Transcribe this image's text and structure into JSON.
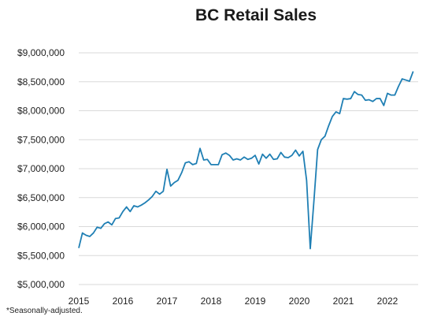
{
  "chart_data": {
    "type": "line",
    "title": "BC Retail Sales",
    "footnote": "*Seasonally-adjusted.",
    "ylim": [
      5000000,
      9000000
    ],
    "y_ticks": [
      5000000,
      5500000,
      6000000,
      6500000,
      7000000,
      7500000,
      8000000,
      8500000,
      9000000
    ],
    "y_tick_labels": [
      "$5,000,000",
      "$5,500,000",
      "$6,000,000",
      "$6,500,000",
      "$7,000,000",
      "$7,500,000",
      "$8,000,000",
      "$8,500,000",
      "$9,000,000"
    ],
    "x_tick_labels": [
      "2015",
      "2016",
      "2017",
      "2018",
      "2019",
      "2020",
      "2021",
      "2022"
    ],
    "grid": "horizontal",
    "line_color": "#1f7fb4",
    "series": [
      {
        "x_start": "2015-01",
        "frequency": "monthly",
        "values": [
          5630000,
          5890000,
          5850000,
          5830000,
          5890000,
          5990000,
          5970000,
          6050000,
          6080000,
          6030000,
          6140000,
          6150000,
          6260000,
          6340000,
          6260000,
          6360000,
          6340000,
          6370000,
          6410000,
          6460000,
          6520000,
          6610000,
          6560000,
          6610000,
          6990000,
          6700000,
          6760000,
          6800000,
          6930000,
          7100000,
          7120000,
          7070000,
          7090000,
          7350000,
          7150000,
          7160000,
          7070000,
          7070000,
          7070000,
          7240000,
          7270000,
          7230000,
          7150000,
          7170000,
          7150000,
          7200000,
          7160000,
          7180000,
          7230000,
          7080000,
          7250000,
          7180000,
          7250000,
          7160000,
          7170000,
          7280000,
          7200000,
          7190000,
          7230000,
          7320000,
          7220000,
          7300000,
          6800000,
          5620000,
          6450000,
          7330000,
          7500000,
          7560000,
          7740000,
          7900000,
          7980000,
          7950000,
          8210000,
          8200000,
          8210000,
          8330000,
          8280000,
          8270000,
          8180000,
          8190000,
          8160000,
          8210000,
          8210000,
          8090000,
          8300000,
          8270000,
          8270000,
          8420000,
          8550000,
          8530000,
          8510000,
          8680000
        ]
      }
    ]
  }
}
